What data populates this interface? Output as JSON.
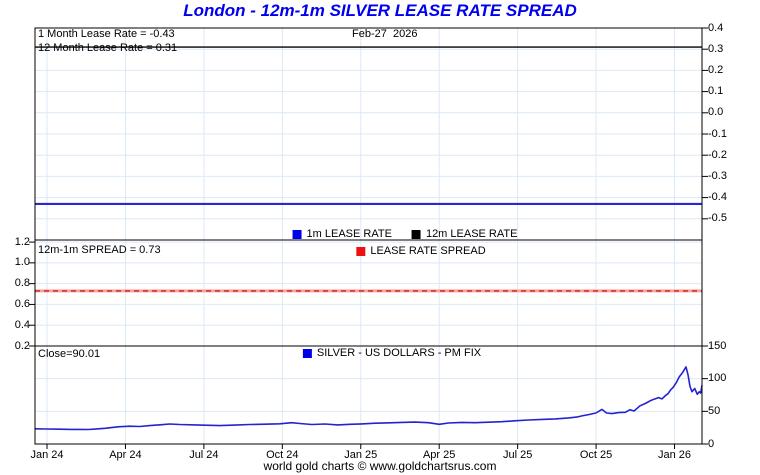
{
  "title": "London - 12m-1m SILVER LEASE RATE SPREAD",
  "footer": "world gold charts © www.goldchartsrus.com",
  "annotations": {
    "one_month_rate": "1 Month Lease Rate = -0.43",
    "twelve_month_rate": "12 Month Lease Rate = 0.31",
    "date": "Feb-27  2026",
    "spread": "12m-1m SPREAD = 0.73",
    "close": "Close=90.01"
  },
  "colors": {
    "title": "#0000ee",
    "grid": "#dce9f7",
    "border": "#000000",
    "background": "#ffffff",
    "text": "#000000"
  },
  "x_axis": {
    "labels": [
      "Jan 24",
      "Apr 24",
      "Jul 24",
      "Oct 24",
      "Jan 25",
      "Apr 25",
      "Jul 25",
      "Oct 25",
      "Jan 26"
    ],
    "fracs": [
      0.018,
      0.1356,
      0.2532,
      0.3708,
      0.4884,
      0.606,
      0.7236,
      0.8412,
      0.9588
    ]
  },
  "chart_data": [
    {
      "type": "line",
      "name": "lease-rates-panel",
      "axis_side": "right",
      "ylim": [
        -0.6,
        0.4
      ],
      "yticks": [
        "0.4",
        "0.3",
        "0.2",
        "0.1",
        "0.0",
        "-0.1",
        "-0.2",
        "-0.3",
        "-0.4",
        "-0.5"
      ],
      "legend_position": "bottom-center",
      "series": [
        {
          "name": "1m LEASE RATE",
          "color": "#2828d2",
          "swatch": "#0000e8",
          "value": -0.43,
          "width": 2.2
        },
        {
          "name": "12m LEASE RATE",
          "color": "#000000",
          "swatch": "#000000",
          "value": 0.31,
          "width": 1.3
        }
      ]
    },
    {
      "type": "line",
      "name": "spread-panel",
      "axis_side": "left",
      "ylim": [
        0.2,
        1.22
      ],
      "yticks": [
        "1.2",
        "1.0",
        "0.8",
        "0.6",
        "0.4",
        "0.2"
      ],
      "legend_position": "top-center",
      "series": [
        {
          "name": "LEASE RATE SPREAD",
          "color": "#f5a39e",
          "dash_color": "#dd433a",
          "swatch": "#ee1111",
          "value": 0.73,
          "width": 3
        }
      ]
    },
    {
      "type": "line",
      "name": "silver-price-panel",
      "axis_side": "right",
      "ylim": [
        0,
        150
      ],
      "yticks": [
        "150",
        "100",
        "50",
        "0"
      ],
      "legend_position": "top-center",
      "series": [
        {
          "name": "SILVER - US DOLLARS - PM FIX",
          "color": "#2323d0",
          "swatch": "#0000e8",
          "width": 1.6,
          "close": 90.01,
          "x": [
            0.0,
            0.018,
            0.037,
            0.055,
            0.067,
            0.08,
            0.09,
            0.105,
            0.118,
            0.127,
            0.142,
            0.157,
            0.172,
            0.19,
            0.202,
            0.217,
            0.24,
            0.262,
            0.277,
            0.3,
            0.322,
            0.345,
            0.367,
            0.385,
            0.397,
            0.415,
            0.435,
            0.454,
            0.472,
            0.49,
            0.51,
            0.532,
            0.55,
            0.57,
            0.59,
            0.606,
            0.62,
            0.64,
            0.66,
            0.68,
            0.7,
            0.722,
            0.74,
            0.76,
            0.78,
            0.8,
            0.812,
            0.82,
            0.83,
            0.841,
            0.85,
            0.857,
            0.865,
            0.875,
            0.885,
            0.892,
            0.898,
            0.907,
            0.915,
            0.922,
            0.928,
            0.935,
            0.94,
            0.945,
            0.949,
            0.953,
            0.957,
            0.962,
            0.966,
            0.97,
            0.973,
            0.976,
            0.979,
            0.982,
            0.985,
            0.989,
            0.993,
            0.996,
            0.998,
            1.0
          ],
          "values": [
            23.3,
            23.0,
            22.6,
            22.3,
            22.4,
            22.2,
            22.8,
            24.0,
            25.6,
            26.5,
            27.3,
            26.8,
            28.2,
            29.6,
            30.6,
            29.8,
            29.3,
            28.6,
            28.1,
            29.0,
            29.8,
            30.3,
            30.9,
            32.6,
            31.4,
            29.8,
            30.6,
            29.2,
            30.1,
            30.8,
            31.8,
            32.4,
            33.0,
            33.5,
            32.6,
            30.2,
            32.2,
            33.0,
            32.6,
            33.4,
            34.2,
            35.6,
            36.8,
            37.6,
            38.4,
            40.0,
            41.2,
            43.0,
            45.0,
            47.5,
            53.0,
            47.5,
            46.5,
            48.0,
            48.5,
            52.5,
            50.5,
            58.5,
            62.0,
            66.0,
            68.5,
            71.0,
            69.0,
            74.0,
            77.0,
            83.0,
            87.0,
            95.0,
            103.0,
            108.0,
            113.0,
            118.0,
            106.0,
            88.0,
            80.0,
            85.0,
            76.0,
            80.0,
            78.0,
            90.0
          ]
        }
      ]
    }
  ]
}
